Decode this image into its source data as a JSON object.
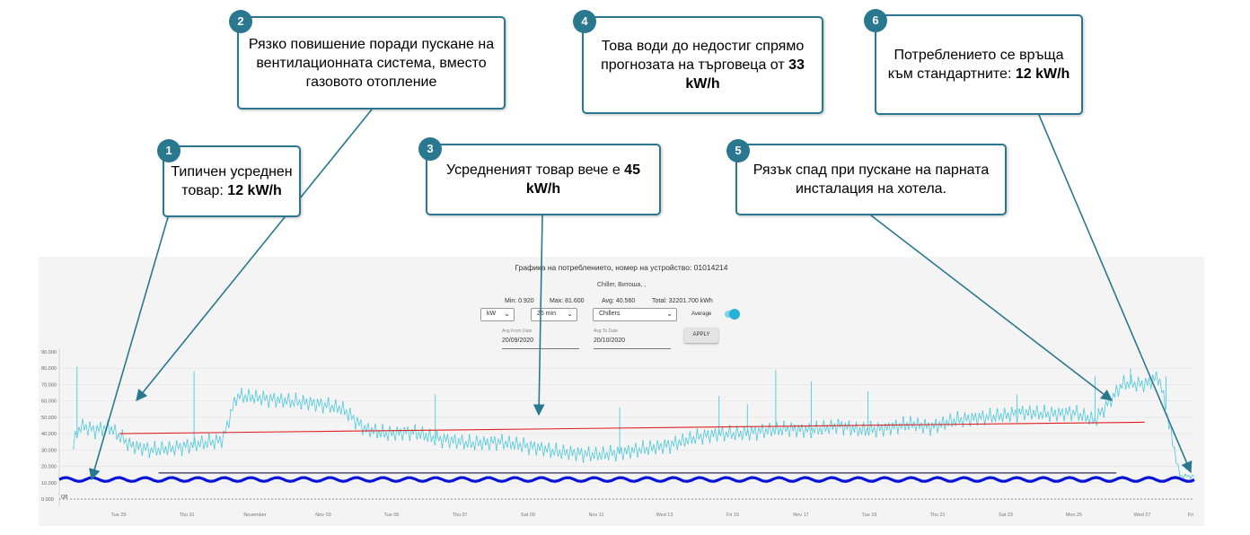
{
  "panel": {
    "title": "Графика на потреблението, номер на устройство: 01014214",
    "subtitle": "Chiller, Витоша, ,",
    "stats": {
      "min": "Min: 0.920",
      "max": "Max: 81.600",
      "avg": "Avg: 40.560",
      "total": "Total: 32201.700 kWh"
    },
    "unit_select": "kW",
    "interval_select": "25 min",
    "device_select": "Chillers",
    "average_label": "Average",
    "average_on": true,
    "avg_from_label": "Avg From Date",
    "avg_from_value": "20/09/2020",
    "avg_to_label": "Avg To Date",
    "avg_to_value": "20/10/2020",
    "apply_label": "APPLY"
  },
  "callouts": [
    {
      "n": "1",
      "text": "Типичен усреднен товар: ",
      "bold": "12 kW/h"
    },
    {
      "n": "2",
      "text": "Рязко повишение поради пускане на вентилационната система, вместо газовото отопление",
      "bold": ""
    },
    {
      "n": "3",
      "text": "Усредненият товар вече е ",
      "bold": "45 kW/h"
    },
    {
      "n": "4",
      "text": "Това води до недостиг спрямо прогнозата на търговеца от ",
      "bold": "33 kW/h"
    },
    {
      "n": "5",
      "text": "Рязък спад при пускане на парната инсталация на хотела.",
      "bold": ""
    },
    {
      "n": "6",
      "text": "Потреблението се връща към стандартните: ",
      "bold": "12 kW/h"
    }
  ],
  "colors": {
    "consumption": "#4ec9dc",
    "baseline": "#0a14d8",
    "trend": "#e02020",
    "target": "#2a2a55",
    "callout": "#2a7890"
  },
  "chart_data": {
    "type": "line",
    "x_ticks": [
      "Tue 29",
      "Thu 31",
      "November",
      "Nov 03",
      "Tue 05",
      "Thu 07",
      "Sat 09",
      "Nov 11",
      "Wed 13",
      "Fri 15",
      "Nov 17",
      "Tue 19",
      "Thu 21",
      "Sat 23",
      "Mon 25",
      "Wed 27",
      "Fri"
    ],
    "y_ticks": [
      "0.000",
      "10.000",
      "20.000",
      "30.000",
      "40.000",
      "50.000",
      "60.000",
      "70.000",
      "80.000",
      "90.000"
    ],
    "ylim": [
      0,
      90
    ],
    "threshold_label": "Q8",
    "series": [
      {
        "kind": "consumption",
        "x": [
          0.2,
          0.3,
          0.5,
          0.7,
          1.0,
          1.3,
          1.6,
          2.0,
          2.3,
          2.5,
          2.8,
          3.2,
          3.5,
          3.8,
          4.0,
          4.3,
          4.6,
          5.0,
          5.3,
          5.5,
          5.8,
          6.2,
          6.5,
          6.8,
          7.0,
          7.3,
          7.6,
          8.0,
          8.3,
          8.6,
          9.0,
          9.3,
          9.6,
          10.0,
          10.3,
          10.6,
          11.0,
          11.3,
          11.6,
          12.0,
          12.3,
          12.6,
          13.0,
          13.3,
          13.6,
          14.0,
          14.3,
          14.6,
          15.0,
          15.3,
          15.5,
          15.8,
          16.0
        ],
        "y": [
          34,
          45,
          42,
          44,
          33,
          30,
          31,
          34,
          36,
          63,
          62,
          60,
          59,
          57,
          55,
          43,
          40,
          41,
          37,
          36,
          34,
          35,
          33,
          31,
          29,
          28,
          27,
          29,
          31,
          33,
          38,
          40,
          40,
          42,
          43,
          42,
          45,
          42,
          43,
          46,
          44,
          48,
          50,
          51,
          53,
          52,
          53,
          48,
          71,
          70,
          75,
          14,
          14
        ]
      },
      {
        "kind": "baseline",
        "value": 12
      },
      {
        "kind": "trend",
        "from": 40,
        "to": 47
      },
      {
        "kind": "target",
        "value": 16
      }
    ]
  }
}
